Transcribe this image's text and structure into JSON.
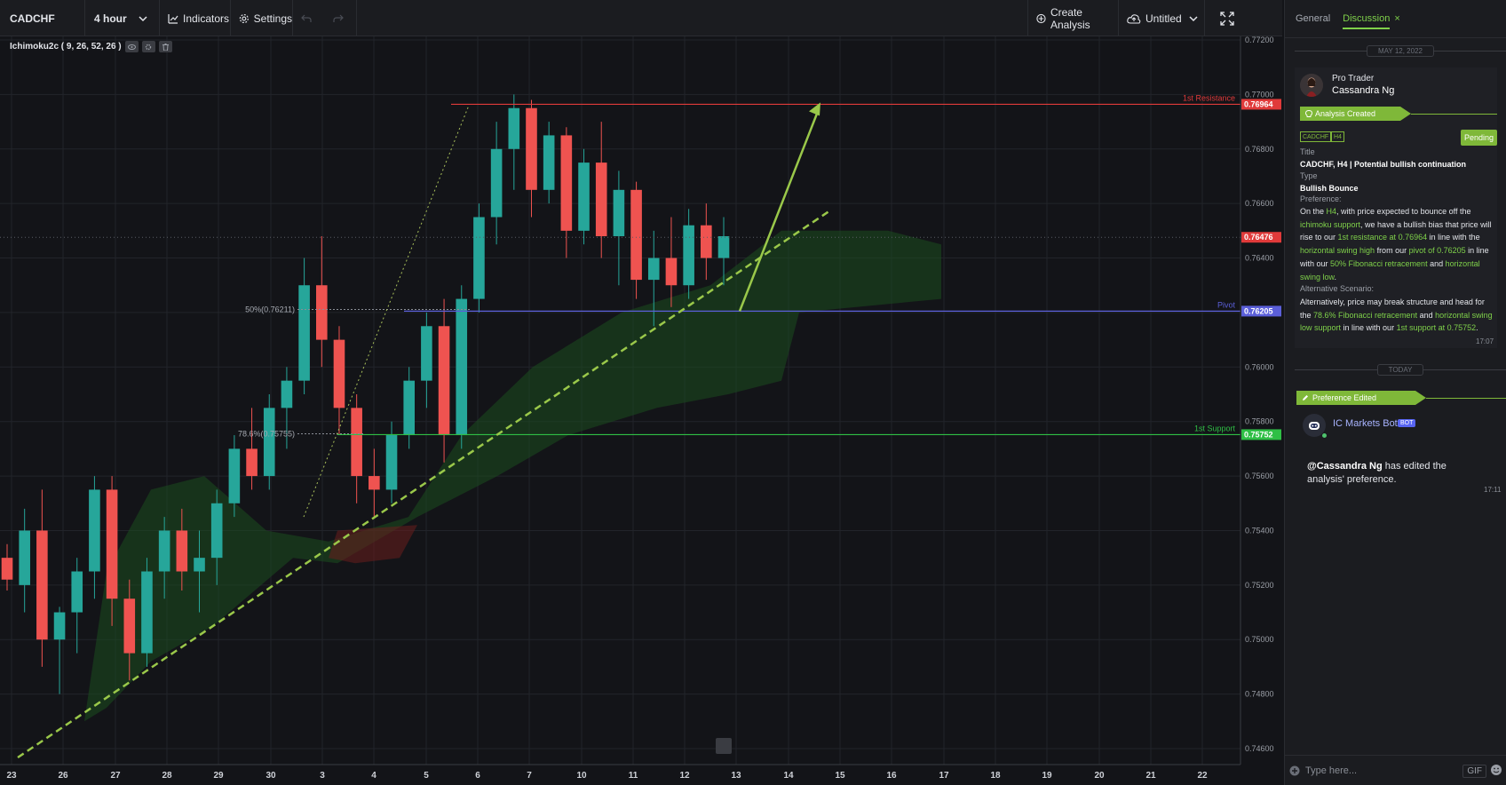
{
  "toolbar": {
    "symbol": "CADCHF",
    "timeframe": "4 hour",
    "indicators_label": "Indicators",
    "settings_label": "Settings",
    "create_analysis_label": "Create Analysis",
    "layout_label": "Untitled",
    "icons": [
      "chevron-down-icon",
      "indicators-icon",
      "gear-icon",
      "undo-icon",
      "redo-icon",
      "plus-circle-icon",
      "cloud-upload-icon",
      "fullscreen-icon"
    ]
  },
  "chart": {
    "indicator_label": "Ichimoku2c ( 9, 26, 52, 26 )",
    "price_ticks": [
      "0.77200",
      "0.77000",
      "0.76800",
      "0.76600",
      "0.76400",
      "0.76200",
      "0.76000",
      "0.75800",
      "0.75600",
      "0.75400",
      "0.75200",
      "0.75000",
      "0.74800",
      "0.74600"
    ],
    "date_ticks": [
      "23",
      "26",
      "27",
      "28",
      "29",
      "30",
      "3",
      "4",
      "5",
      "6",
      "7",
      "10",
      "11",
      "12",
      "13",
      "14",
      "15",
      "16",
      "17",
      "18",
      "19",
      "20",
      "21",
      "22"
    ],
    "levels": {
      "resistance": {
        "label": "1st Resistance",
        "value": "0.76964",
        "color": "#e03a3a"
      },
      "pivot": {
        "label": "Pivot",
        "value": "0.76205",
        "color": "#5b5fd9"
      },
      "support": {
        "label": "1st Support",
        "value": "0.75752",
        "color": "#2fbf45"
      }
    },
    "current_price": "0.76476",
    "fib_labels": {
      "fib50": "50%(0.76211)",
      "fib786": "78.6%(0.75755)"
    },
    "colors": {
      "bull": "#26a69a",
      "bear": "#ef5350",
      "cloud": "#1b4d1f",
      "trend": "#9ac84a"
    }
  },
  "chart_data": {
    "type": "candlestick",
    "symbol": "CADCHF",
    "interval": "4 hour",
    "y_range": [
      0.746,
      0.772
    ],
    "x": [
      "23",
      "26",
      "27",
      "28",
      "29",
      "30",
      "3",
      "4",
      "5",
      "6",
      "7",
      "10",
      "11",
      "12",
      "13",
      "14",
      "15",
      "16",
      "17",
      "18",
      "19",
      "20",
      "21",
      "22"
    ],
    "ohlc_approx": [
      [
        0.753,
        0.7535,
        0.7518,
        0.7522
      ],
      [
        0.752,
        0.7548,
        0.751,
        0.754
      ],
      [
        0.754,
        0.7555,
        0.749,
        0.75
      ],
      [
        0.75,
        0.7512,
        0.748,
        0.751
      ],
      [
        0.751,
        0.753,
        0.7495,
        0.7525
      ],
      [
        0.7525,
        0.756,
        0.7515,
        0.7555
      ],
      [
        0.7555,
        0.756,
        0.7505,
        0.7515
      ],
      [
        0.7515,
        0.7522,
        0.7485,
        0.7495
      ],
      [
        0.7495,
        0.753,
        0.749,
        0.7525
      ],
      [
        0.7525,
        0.7545,
        0.7515,
        0.754
      ],
      [
        0.754,
        0.7548,
        0.7518,
        0.7525
      ],
      [
        0.7525,
        0.754,
        0.751,
        0.753
      ],
      [
        0.753,
        0.7555,
        0.752,
        0.755
      ],
      [
        0.755,
        0.7575,
        0.7545,
        0.757
      ],
      [
        0.757,
        0.7585,
        0.7555,
        0.756
      ],
      [
        0.756,
        0.759,
        0.7555,
        0.7585
      ],
      [
        0.7585,
        0.76,
        0.757,
        0.7595
      ],
      [
        0.7595,
        0.764,
        0.759,
        0.763
      ],
      [
        0.763,
        0.7648,
        0.76,
        0.761
      ],
      [
        0.761,
        0.7615,
        0.7575,
        0.7585
      ],
      [
        0.7585,
        0.759,
        0.755,
        0.756
      ],
      [
        0.756,
        0.757,
        0.7545,
        0.7555
      ],
      [
        0.7555,
        0.758,
        0.755,
        0.7575
      ],
      [
        0.7575,
        0.76,
        0.757,
        0.7595
      ],
      [
        0.7595,
        0.762,
        0.7585,
        0.7615
      ],
      [
        0.7615,
        0.7625,
        0.7565,
        0.7575
      ],
      [
        0.7575,
        0.763,
        0.757,
        0.7625
      ],
      [
        0.7625,
        0.766,
        0.762,
        0.7655
      ],
      [
        0.7655,
        0.769,
        0.7645,
        0.768
      ],
      [
        0.768,
        0.77,
        0.7665,
        0.7695
      ],
      [
        0.7695,
        0.7698,
        0.7655,
        0.7665
      ],
      [
        0.7665,
        0.769,
        0.766,
        0.7685
      ],
      [
        0.7685,
        0.7688,
        0.764,
        0.765
      ],
      [
        0.765,
        0.768,
        0.7645,
        0.7675
      ],
      [
        0.7675,
        0.769,
        0.764,
        0.7648
      ],
      [
        0.7648,
        0.7672,
        0.763,
        0.7665
      ],
      [
        0.7665,
        0.7668,
        0.7625,
        0.7632
      ],
      [
        0.7632,
        0.765,
        0.7615,
        0.764
      ],
      [
        0.764,
        0.7655,
        0.7622,
        0.763
      ],
      [
        0.763,
        0.7658,
        0.7625,
        0.7652
      ],
      [
        0.7652,
        0.766,
        0.7632,
        0.764
      ],
      [
        0.764,
        0.7655,
        0.763,
        0.7648
      ]
    ],
    "ichimoku": {
      "tenkan": 9,
      "kijun": 26,
      "senkou_b": 52,
      "displacement": 26
    },
    "levels": {
      "1st Resistance": 0.76964,
      "Pivot": 0.76205,
      "1st Support": 0.75752
    },
    "current_price": 0.76476,
    "fibonacci": {
      "50%": 0.76211,
      "78.6%": 0.75755
    },
    "grid": true
  },
  "panel": {
    "tabs": {
      "general": "General",
      "discussion": "Discussion"
    },
    "date_sep_1": "MAY 12, 2022",
    "date_sep_2": "TODAY",
    "author_role": "Pro Trader",
    "author_name": "Cassandra Ng",
    "banner_created": "Analysis Created",
    "tag_symbol": "CADCHF",
    "tag_tf": "H4",
    "status": "Pending",
    "title_label": "Title",
    "title_value": "CADCHF, H4 | Potential bullish continuation",
    "type_label": "Type",
    "type_value": "Bullish Bounce",
    "pref_label": "Preference:",
    "alt_label": "Alternative Scenario:",
    "time_1": "17:07",
    "banner_edited": "Preference Edited",
    "bot_name": "IC Markets Bot",
    "bot_badge": "BOT",
    "bot_mention": "@Cassandra Ng",
    "bot_text": " has edited the analysis' preference.",
    "time_2": "17:11",
    "input_placeholder": "Type here...",
    "gif_label": "GIF"
  }
}
